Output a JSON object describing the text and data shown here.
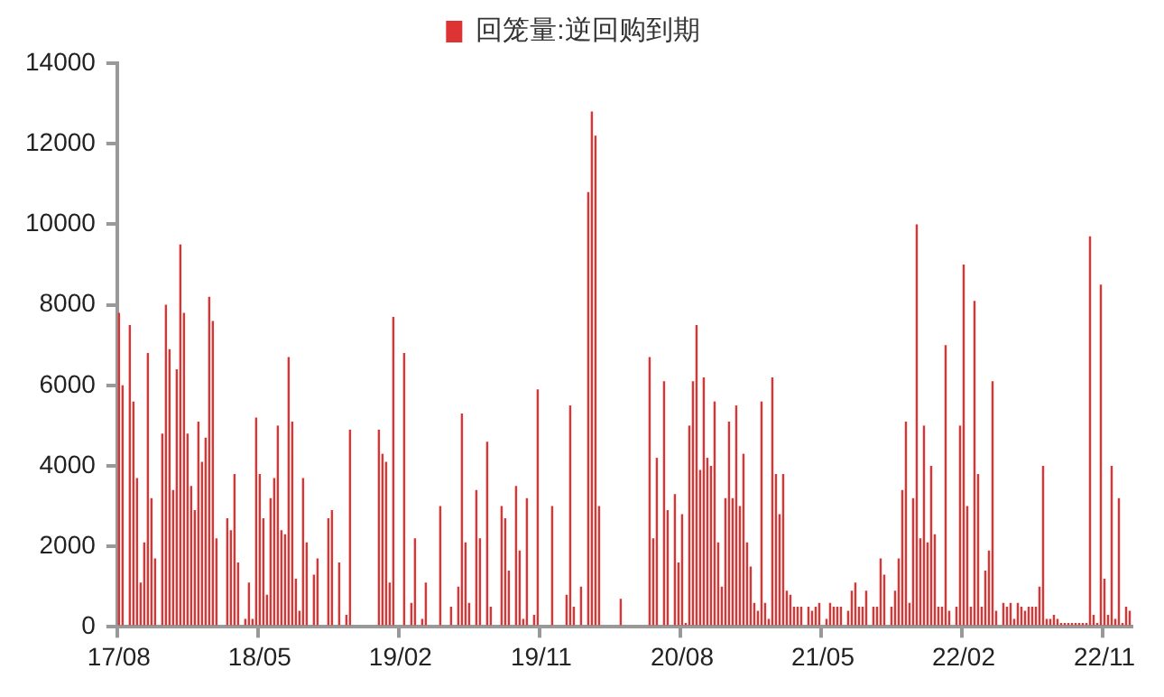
{
  "chart_data": {
    "type": "bar",
    "legend": "top",
    "grid": false,
    "ylim": [
      0,
      14000
    ],
    "yticks": [
      0,
      2000,
      4000,
      6000,
      8000,
      10000,
      12000,
      14000
    ],
    "categories": [
      "17/08",
      null,
      null,
      null,
      null,
      null,
      null,
      null,
      null,
      null,
      null,
      null,
      null,
      null,
      null,
      null,
      null,
      null,
      null,
      null,
      null,
      null,
      null,
      null,
      null,
      null,
      null,
      null,
      null,
      null,
      null,
      null,
      null,
      null,
      null,
      null,
      null,
      null,
      null,
      "18/05",
      null,
      null,
      null,
      null,
      null,
      null,
      null,
      null,
      null,
      null,
      null,
      null,
      null,
      null,
      null,
      null,
      null,
      null,
      null,
      null,
      null,
      null,
      null,
      null,
      null,
      null,
      null,
      null,
      null,
      null,
      null,
      null,
      null,
      null,
      null,
      null,
      null,
      null,
      "19/02",
      null,
      null,
      null,
      null,
      null,
      null,
      null,
      null,
      null,
      null,
      null,
      null,
      null,
      null,
      null,
      null,
      null,
      null,
      null,
      null,
      null,
      null,
      null,
      null,
      null,
      null,
      null,
      null,
      null,
      null,
      null,
      null,
      null,
      null,
      null,
      null,
      null,
      null,
      "19/11",
      null,
      null,
      null,
      null,
      null,
      null,
      null,
      null,
      null,
      null,
      null,
      null,
      null,
      null,
      null,
      null,
      null,
      null,
      null,
      null,
      null,
      null,
      null,
      null,
      null,
      null,
      null,
      null,
      null,
      null,
      null,
      null,
      null,
      null,
      null,
      null,
      null,
      null,
      "20/08",
      null,
      null,
      null,
      null,
      null,
      null,
      null,
      null,
      null,
      null,
      null,
      null,
      null,
      null,
      null,
      null,
      null,
      null,
      null,
      null,
      null,
      null,
      null,
      null,
      null,
      null,
      null,
      null,
      null,
      null,
      null,
      null,
      null,
      null,
      null,
      null,
      null,
      null,
      "21/05",
      null,
      null,
      null,
      null,
      null,
      null,
      null,
      null,
      null,
      null,
      null,
      null,
      null,
      null,
      null,
      null,
      null,
      null,
      null,
      null,
      null,
      null,
      null,
      null,
      null,
      null,
      null,
      null,
      null,
      null,
      null,
      null,
      null,
      null,
      null,
      null,
      null,
      null,
      "22/02",
      null,
      null,
      null,
      null,
      null,
      null,
      null,
      null,
      null,
      null,
      null,
      null,
      null,
      null,
      null,
      null,
      null,
      null,
      null,
      null,
      null,
      null,
      null,
      null,
      null,
      null,
      null,
      null,
      null,
      null,
      null,
      null,
      null,
      null,
      null,
      null,
      null,
      null,
      "22/11",
      null,
      null,
      null,
      null,
      null,
      null,
      null
    ],
    "series": [
      {
        "name": "回笼量:逆回购到期",
        "color": "#dd3333",
        "values": [
          7800,
          6000,
          0,
          7500,
          5600,
          3700,
          1100,
          2100,
          6800,
          3200,
          1700,
          0,
          4800,
          8000,
          6900,
          3400,
          6400,
          9500,
          7800,
          4800,
          3500,
          2900,
          5100,
          4100,
          4700,
          8200,
          7600,
          2200,
          0,
          0,
          2700,
          2400,
          3800,
          1600,
          0,
          200,
          1100,
          200,
          5200,
          3800,
          2700,
          800,
          3200,
          3700,
          5000,
          2400,
          2300,
          6700,
          5100,
          1200,
          400,
          3700,
          2100,
          0,
          1300,
          1700,
          0,
          0,
          2700,
          2900,
          0,
          1600,
          0,
          300,
          4900,
          0,
          0,
          0,
          0,
          0,
          0,
          0,
          4900,
          4300,
          4100,
          1100,
          7700,
          0,
          0,
          6800,
          0,
          600,
          2200,
          0,
          200,
          1100,
          0,
          0,
          0,
          3000,
          0,
          0,
          500,
          0,
          1000,
          5300,
          2100,
          600,
          0,
          3400,
          2200,
          0,
          4600,
          500,
          0,
          0,
          3000,
          2700,
          1400,
          0,
          3500,
          1900,
          200,
          3200,
          0,
          300,
          5900,
          0,
          0,
          0,
          3000,
          0,
          0,
          0,
          800,
          5500,
          500,
          0,
          1000,
          0,
          10800,
          12800,
          12200,
          3000,
          0,
          0,
          0,
          0,
          0,
          700,
          0,
          0,
          0,
          0,
          0,
          0,
          0,
          6700,
          2200,
          4200,
          0,
          6100,
          2900,
          0,
          3300,
          1600,
          2800,
          100,
          5000,
          6100,
          7500,
          3900,
          6200,
          4200,
          4000,
          5600,
          2100,
          1000,
          3200,
          5100,
          3200,
          5500,
          3000,
          4300,
          2100,
          1500,
          600,
          400,
          5600,
          600,
          200,
          6200,
          3800,
          2800,
          3800,
          900,
          800,
          500,
          500,
          500,
          0,
          500,
          400,
          500,
          600,
          0,
          200,
          600,
          500,
          500,
          500,
          0,
          400,
          900,
          1100,
          500,
          500,
          900,
          0,
          500,
          500,
          1700,
          1300,
          0,
          500,
          900,
          1700,
          3400,
          5100,
          600,
          3200,
          10000,
          2200,
          5000,
          2100,
          4000,
          2300,
          500,
          500,
          7000,
          400,
          0,
          500,
          5000,
          9000,
          3000,
          500,
          8100,
          3800,
          500,
          1400,
          1900,
          6100,
          400,
          0,
          600,
          500,
          600,
          200,
          600,
          500,
          400,
          500,
          500,
          500,
          1000,
          4000,
          200,
          200,
          300,
          200,
          100,
          100,
          100,
          100,
          100,
          100,
          100,
          100,
          9700,
          300,
          100,
          8500,
          1200,
          300,
          4000,
          200,
          3200,
          100,
          500,
          400
        ]
      }
    ]
  }
}
